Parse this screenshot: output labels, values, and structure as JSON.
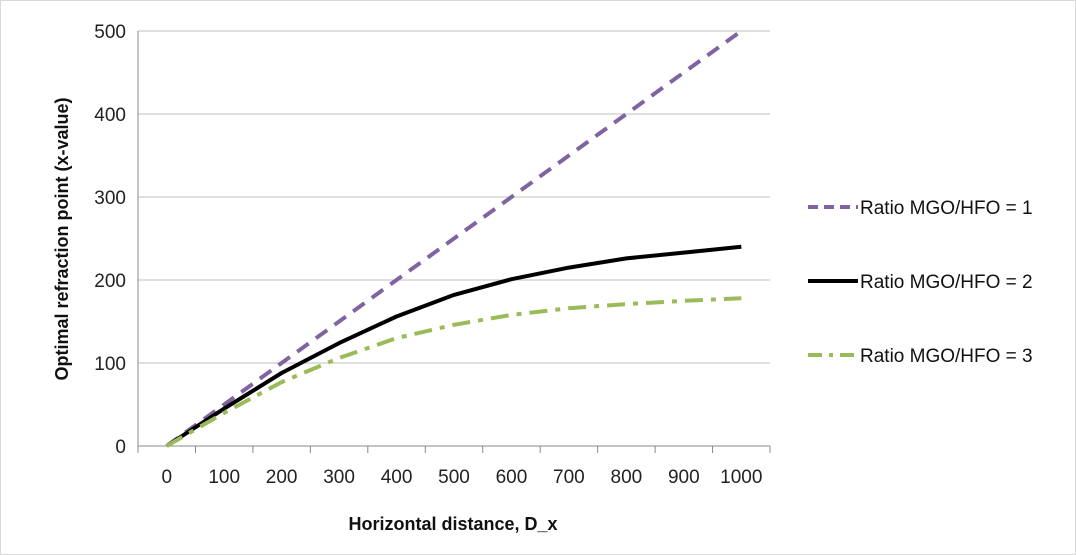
{
  "chart_data": {
    "type": "line",
    "xlabel": "Horizontal distance, D_x",
    "ylabel": "Optimal refraction point (x-value)",
    "xlim": [
      -50,
      1050
    ],
    "ylim": [
      0,
      500
    ],
    "x_ticks": [
      0,
      100,
      200,
      300,
      400,
      500,
      600,
      700,
      800,
      900,
      1000
    ],
    "y_ticks": [
      0,
      100,
      200,
      300,
      400,
      500
    ],
    "grid": "horizontal",
    "legend_position": "right",
    "series": [
      {
        "name": "Ratio MGO/HFO = 1",
        "color": "#8064a2",
        "dash": "dashed",
        "x": [
          0,
          100,
          200,
          300,
          400,
          500,
          600,
          700,
          800,
          900,
          1000
        ],
        "y": [
          0,
          50,
          100,
          150,
          200,
          250,
          300,
          350,
          400,
          450,
          500
        ]
      },
      {
        "name": "Ratio MGO/HFO = 2",
        "color": "#000000",
        "dash": "solid",
        "x": [
          0,
          100,
          200,
          300,
          400,
          500,
          600,
          700,
          800,
          900,
          1000
        ],
        "y": [
          0,
          45,
          88,
          124,
          156,
          182,
          201,
          215,
          226,
          233,
          240
        ]
      },
      {
        "name": "Ratio MGO/HFO = 3",
        "color": "#9bbb59",
        "dash": "dash-dot",
        "x": [
          0,
          100,
          200,
          300,
          400,
          500,
          600,
          700,
          800,
          900,
          1000
        ],
        "y": [
          0,
          40,
          77,
          106,
          130,
          146,
          158,
          166,
          171,
          175,
          178
        ]
      }
    ]
  }
}
